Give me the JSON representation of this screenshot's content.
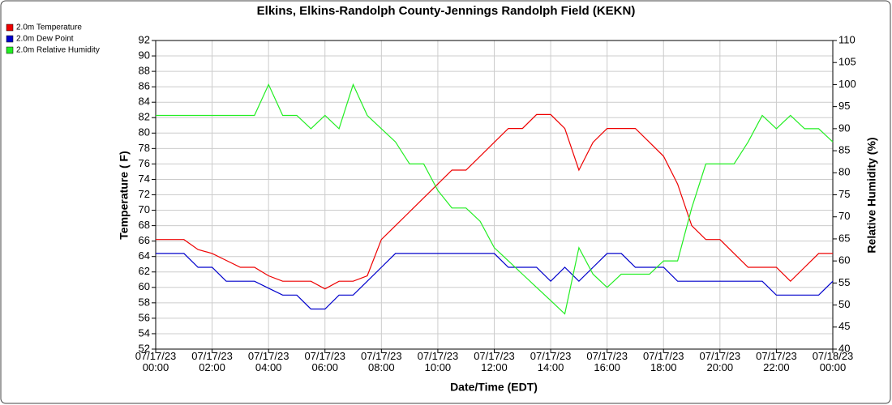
{
  "chart_data": {
    "type": "line",
    "title": "Elkins, Elkins-Randolph County-Jennings Randolph Field (KEKN)",
    "xlabel": "Date/Time (EDT)",
    "ylabel": "Temperature ( F)",
    "y2label": "Relative Humidity (%)",
    "x": [
      "07/17/23 00:00",
      "07/17/23 00:30",
      "07/17/23 01:00",
      "07/17/23 01:30",
      "07/17/23 02:00",
      "07/17/23 02:30",
      "07/17/23 03:00",
      "07/17/23 03:30",
      "07/17/23 04:00",
      "07/17/23 04:30",
      "07/17/23 05:00",
      "07/17/23 05:30",
      "07/17/23 06:00",
      "07/17/23 06:30",
      "07/17/23 07:00",
      "07/17/23 07:30",
      "07/17/23 08:00",
      "07/17/23 08:30",
      "07/17/23 09:00",
      "07/17/23 09:30",
      "07/17/23 10:00",
      "07/17/23 10:30",
      "07/17/23 11:00",
      "07/17/23 11:30",
      "07/17/23 12:00",
      "07/17/23 12:30",
      "07/17/23 13:00",
      "07/17/23 13:30",
      "07/17/23 14:00",
      "07/17/23 14:30",
      "07/17/23 15:00",
      "07/17/23 15:30",
      "07/17/23 16:00",
      "07/17/23 16:30",
      "07/17/23 17:00",
      "07/17/23 17:30",
      "07/17/23 18:00",
      "07/17/23 18:30",
      "07/17/23 19:00",
      "07/17/23 19:30",
      "07/17/23 20:00",
      "07/17/23 20:30",
      "07/17/23 21:00",
      "07/17/23 21:30",
      "07/17/23 22:00",
      "07/17/23 22:30",
      "07/17/23 23:00",
      "07/17/23 23:30",
      "07/18/23 00:00"
    ],
    "series": [
      {
        "name": "2.0m Temperature",
        "color": "#ee0000",
        "values": [
          66.2,
          66.2,
          66.2,
          64.9,
          64.4,
          63.5,
          62.6,
          62.6,
          61.5,
          60.8,
          60.8,
          60.8,
          59.8,
          60.8,
          60.8,
          61.5,
          66.2,
          68,
          69.8,
          71.6,
          73.4,
          75.2,
          75.2,
          77,
          78.8,
          80.6,
          80.6,
          82.4,
          82.4,
          80.6,
          75.2,
          78.8,
          80.6,
          80.6,
          80.6,
          78.8,
          77,
          73.4,
          68,
          66.2,
          66.2,
          64.4,
          62.6,
          62.6,
          62.6,
          60.8,
          62.6,
          64.4,
          64.4
        ]
      },
      {
        "name": "2.0m Dew Point",
        "color": "#0000cc",
        "values": [
          64.4,
          64.4,
          64.4,
          62.6,
          62.6,
          60.8,
          60.8,
          60.8,
          59.9,
          59,
          59,
          57.2,
          57.2,
          59,
          59,
          60.8,
          62.6,
          64.4,
          64.4,
          64.4,
          64.4,
          64.4,
          64.4,
          64.4,
          64.4,
          62.6,
          62.6,
          62.6,
          60.8,
          62.6,
          60.8,
          62.6,
          64.4,
          64.4,
          62.6,
          62.6,
          62.6,
          60.8,
          60.8,
          60.8,
          60.8,
          60.8,
          60.8,
          60.8,
          59,
          59,
          59,
          59,
          60.8
        ]
      },
      {
        "name": "2.0m Relative Humidity",
        "color": "#22ee22",
        "axis": "y2",
        "values": [
          93,
          93,
          93,
          93,
          93,
          93,
          93,
          93,
          100,
          93,
          93,
          90,
          93,
          90,
          100,
          93,
          90,
          87,
          82,
          82,
          76,
          72,
          72,
          69,
          63,
          60,
          57,
          54,
          51,
          48,
          63,
          57,
          54,
          57,
          57,
          57,
          60,
          60,
          72,
          82,
          82,
          82,
          87,
          93,
          90,
          93,
          90,
          90,
          87
        ]
      }
    ],
    "xlim": [
      "07/17/23 00:00",
      "07/18/23 00:00"
    ],
    "xticks": [
      {
        "value": "07/17/23 00:00",
        "label": "07/17/23\n00:00"
      },
      {
        "value": "07/17/23 02:00",
        "label": "07/17/23\n02:00"
      },
      {
        "value": "07/17/23 04:00",
        "label": "07/17/23\n04:00"
      },
      {
        "value": "07/17/23 06:00",
        "label": "07/17/23\n06:00"
      },
      {
        "value": "07/17/23 08:00",
        "label": "07/17/23\n08:00"
      },
      {
        "value": "07/17/23 10:00",
        "label": "07/17/23\n10:00"
      },
      {
        "value": "07/17/23 12:00",
        "label": "07/17/23\n12:00"
      },
      {
        "value": "07/17/23 14:00",
        "label": "07/17/23\n14:00"
      },
      {
        "value": "07/17/23 16:00",
        "label": "07/17/23\n16:00"
      },
      {
        "value": "07/17/23 18:00",
        "label": "07/17/23\n18:00"
      },
      {
        "value": "07/17/23 20:00",
        "label": "07/17/23\n20:00"
      },
      {
        "value": "07/17/23 22:00",
        "label": "07/17/23\n22:00"
      },
      {
        "value": "07/18/23 00:00",
        "label": "07/18/23\n00:00"
      }
    ],
    "ylim": [
      52,
      92
    ],
    "yticks": [
      52,
      54,
      56,
      58,
      60,
      62,
      64,
      66,
      68,
      70,
      72,
      74,
      76,
      78,
      80,
      82,
      84,
      86,
      88,
      90,
      92
    ],
    "y2lim": [
      40,
      110
    ],
    "y2ticks": [
      40,
      45,
      50,
      55,
      60,
      65,
      70,
      75,
      80,
      85,
      90,
      95,
      100,
      105,
      110
    ],
    "grid": true,
    "legend": "top-left"
  }
}
